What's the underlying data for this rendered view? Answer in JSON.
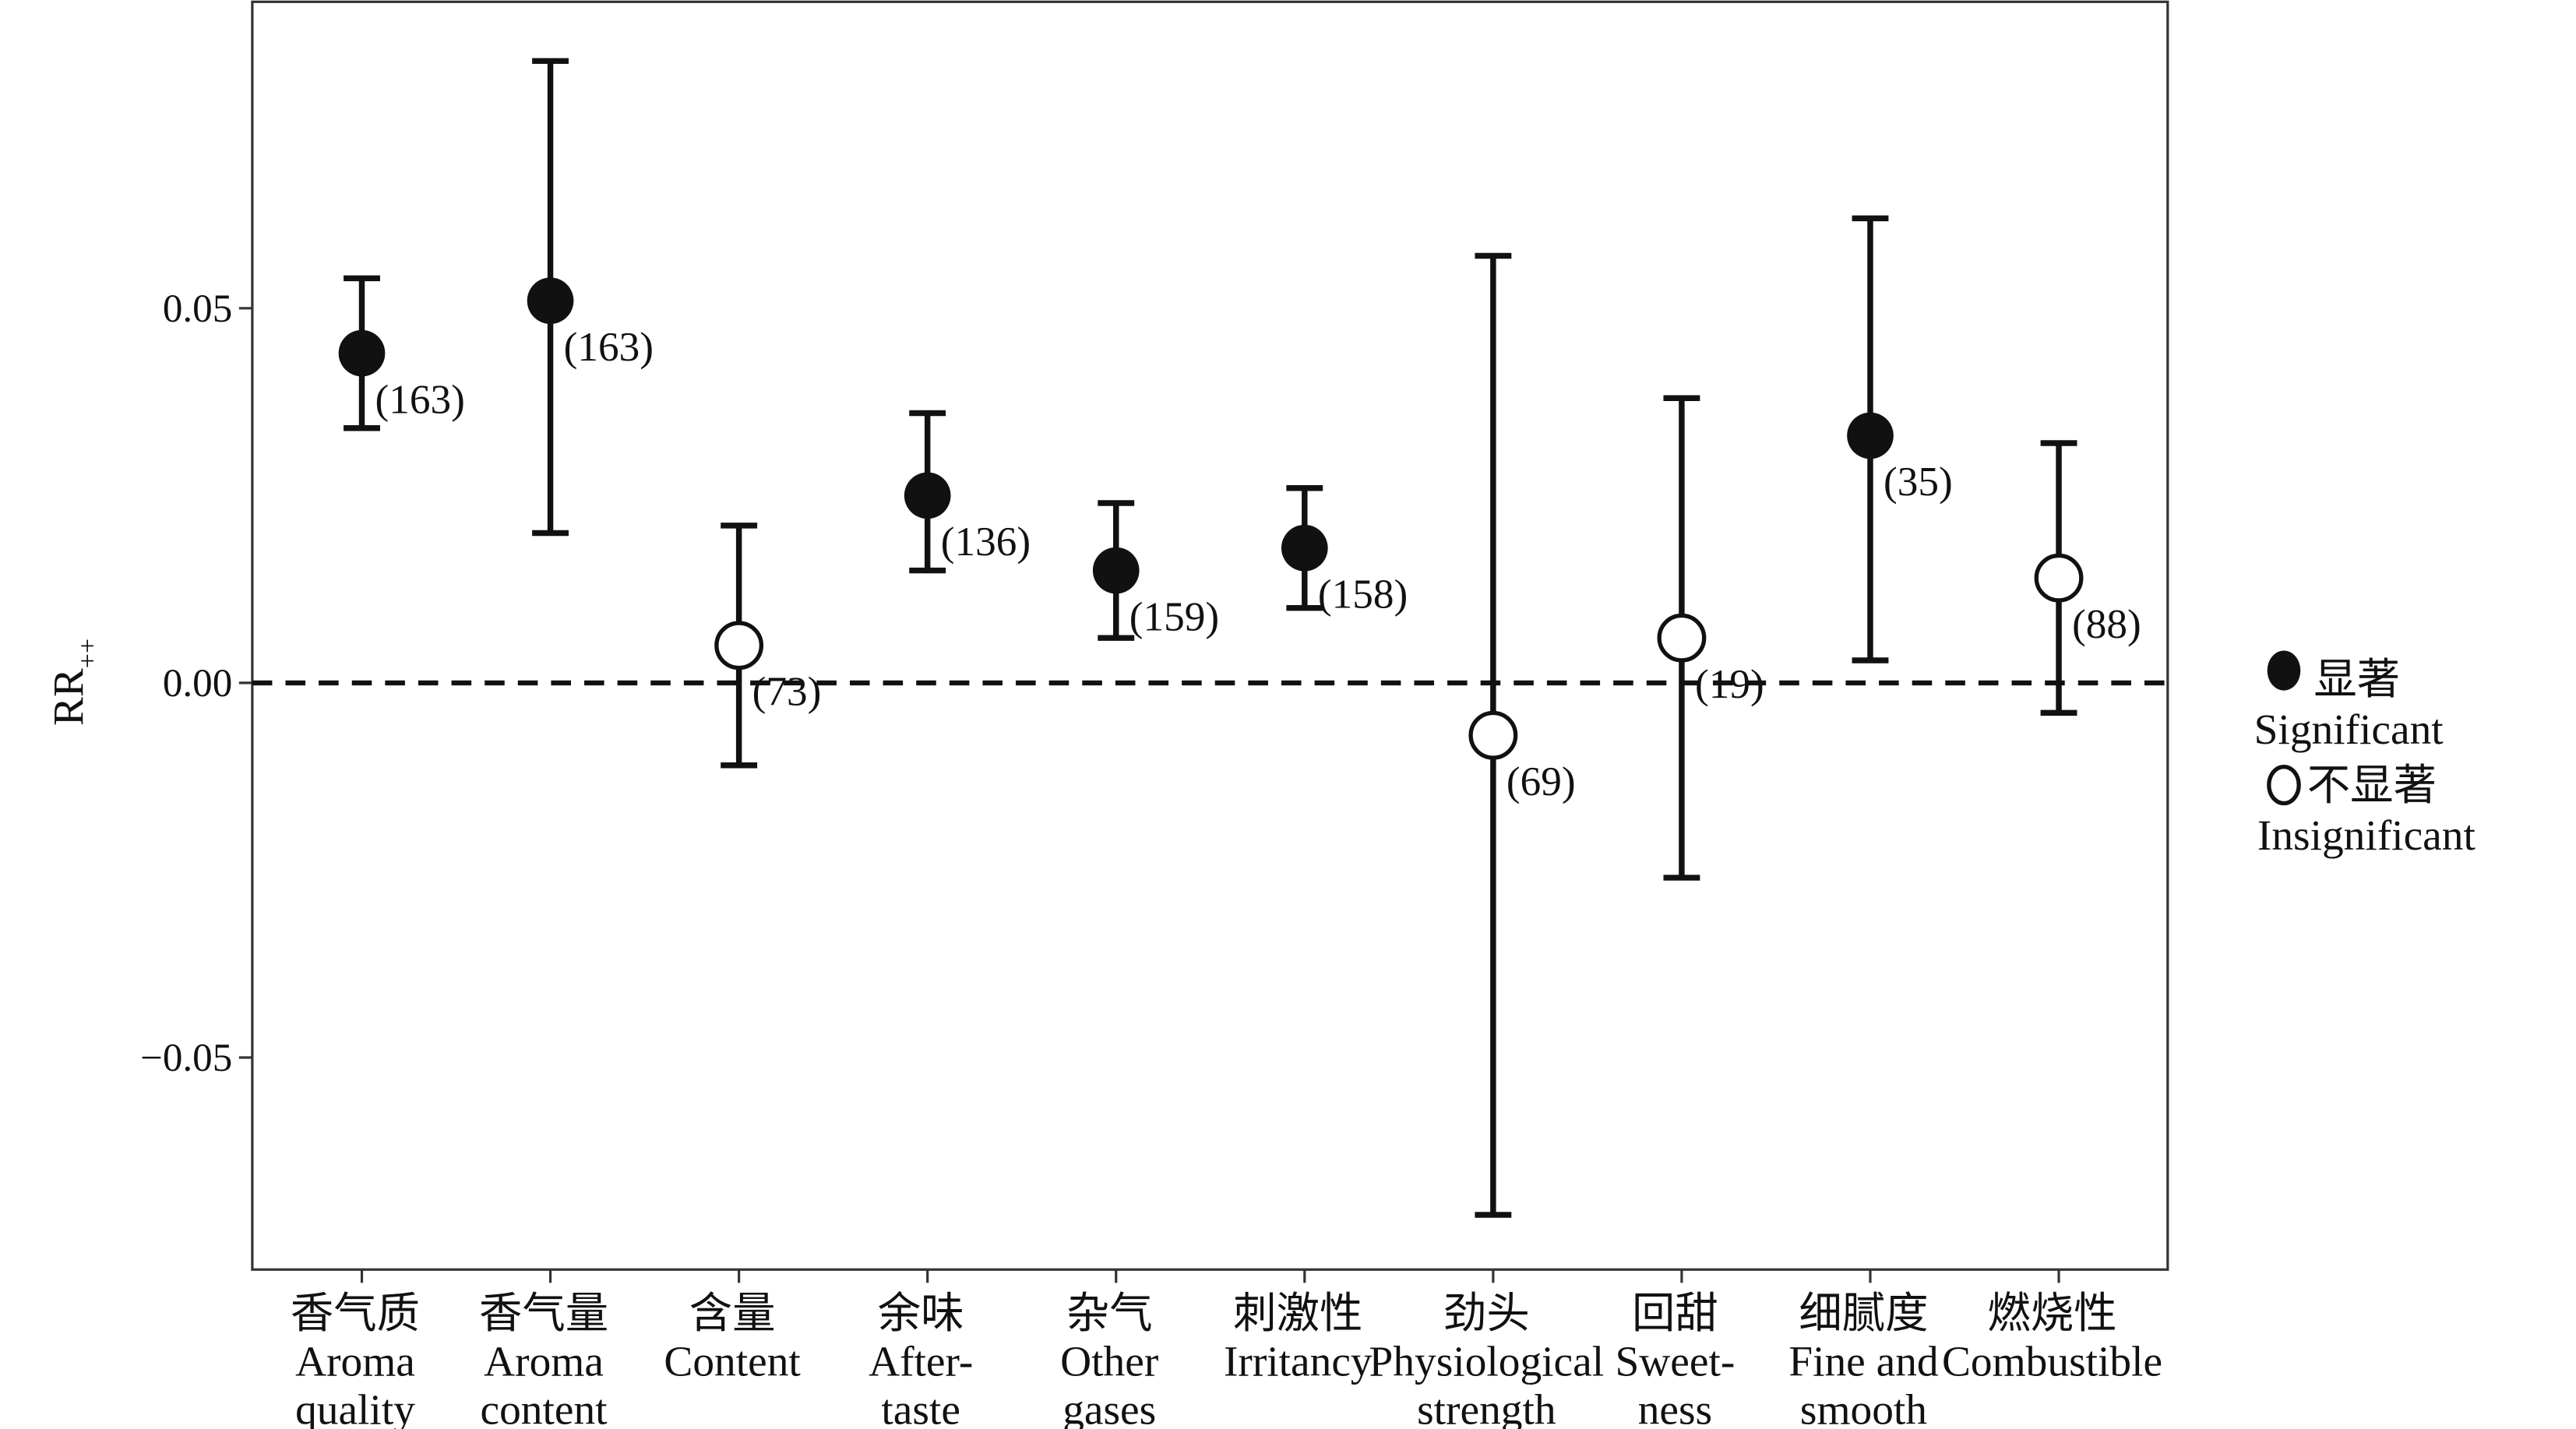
{
  "chart_data": {
    "type": "errorbar",
    "ylabel": "RR",
    "ylabel_sub": "++",
    "ylim": [
      -0.0783,
      0.0909
    ],
    "yticks": [
      0.05,
      0.0,
      -0.05
    ],
    "ytick_labels": [
      "0.05",
      "0.00",
      "−0.05"
    ],
    "reference_line": 0,
    "categories": [
      {
        "zh": "香气质",
        "en": [
          "Aroma",
          "quality"
        ]
      },
      {
        "zh": "香气量",
        "en": [
          "Aroma",
          "content"
        ]
      },
      {
        "zh": "含量",
        "en": [
          "Content"
        ]
      },
      {
        "zh": "余味",
        "en": [
          "After-",
          "taste"
        ]
      },
      {
        "zh": "杂气",
        "en": [
          "Other",
          "gases"
        ]
      },
      {
        "zh": "刺激性",
        "en": [
          "Irritancy"
        ]
      },
      {
        "zh": "劲头",
        "en": [
          "Physiological",
          "strength"
        ]
      },
      {
        "zh": "回甜",
        "en": [
          "Sweet-",
          "ness"
        ]
      },
      {
        "zh": "细腻度",
        "en": [
          "Fine and",
          "smooth"
        ]
      },
      {
        "zh": "燃烧性",
        "en": [
          "Combustible"
        ]
      }
    ],
    "points": [
      {
        "value": 0.044,
        "lower": 0.034,
        "upper": 0.054,
        "n": "(163)",
        "significant": true
      },
      {
        "value": 0.051,
        "lower": 0.02,
        "upper": 0.083,
        "n": "(163)",
        "significant": true
      },
      {
        "value": 0.005,
        "lower": -0.011,
        "upper": 0.021,
        "n": "(73)",
        "significant": false
      },
      {
        "value": 0.025,
        "lower": 0.015,
        "upper": 0.036,
        "n": "(136)",
        "significant": true
      },
      {
        "value": 0.015,
        "lower": 0.006,
        "upper": 0.024,
        "n": "(159)",
        "significant": true
      },
      {
        "value": 0.018,
        "lower": 0.01,
        "upper": 0.026,
        "n": "(158)",
        "significant": true
      },
      {
        "value": -0.007,
        "lower": -0.071,
        "upper": 0.057,
        "n": "(69)",
        "significant": false
      },
      {
        "value": 0.006,
        "lower": -0.026,
        "upper": 0.038,
        "n": "(19)",
        "significant": false
      },
      {
        "value": 0.033,
        "lower": 0.003,
        "upper": 0.062,
        "n": "(35)",
        "significant": true
      },
      {
        "value": 0.014,
        "lower": -0.004,
        "upper": 0.032,
        "n": "(88)",
        "significant": false
      }
    ],
    "legend": {
      "placement": "right",
      "entries": [
        {
          "zh": "显著",
          "en": "Significant",
          "marker": "filled"
        },
        {
          "zh": "不显著",
          "en": "Insignificant",
          "marker": "open"
        }
      ]
    },
    "color": "#111111"
  }
}
